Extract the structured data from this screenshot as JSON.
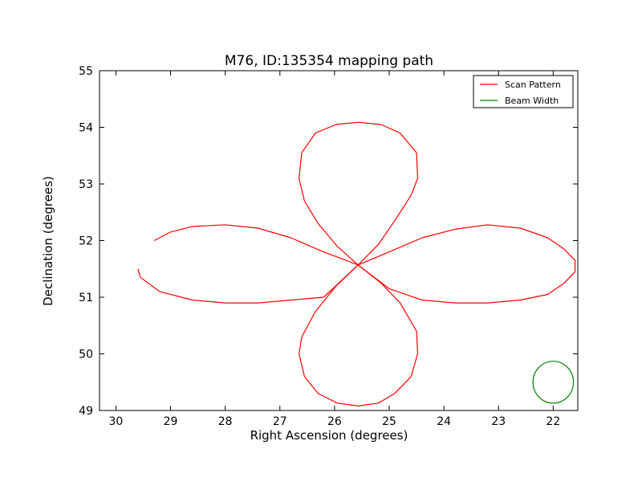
{
  "chart_data": {
    "type": "line",
    "title": "M76, ID:135354 mapping path",
    "xlabel": "Right Ascension (degrees)",
    "ylabel": "Declination (degrees)",
    "xlim": [
      30.3,
      21.55
    ],
    "ylim": [
      49,
      55
    ],
    "x_inverted": true,
    "xticks": [
      30,
      29,
      28,
      27,
      26,
      25,
      24,
      23,
      22
    ],
    "yticks": [
      49,
      50,
      51,
      52,
      53,
      54,
      55
    ],
    "grid": false,
    "legend_position": "top-right",
    "series": [
      {
        "name": "Scan Pattern",
        "color": "#ff0000",
        "x": [
          29.3,
          29.0,
          28.6,
          28.0,
          27.4,
          26.8,
          26.2,
          25.57,
          25.0,
          24.4,
          23.8,
          23.2,
          22.6,
          22.1,
          21.8,
          21.6,
          21.6,
          21.8,
          22.1,
          22.6,
          23.2,
          23.8,
          24.4,
          25.0,
          25.57,
          26.2,
          26.8,
          27.4,
          28.0,
          28.6,
          29.2,
          29.55,
          29.6
        ],
        "y": [
          52.0,
          52.15,
          52.25,
          52.28,
          52.22,
          52.05,
          51.8,
          51.57,
          51.8,
          52.05,
          52.2,
          52.28,
          52.22,
          52.05,
          51.85,
          51.65,
          51.45,
          51.25,
          51.05,
          50.95,
          50.9,
          50.9,
          50.95,
          51.15,
          51.57,
          51.0,
          50.95,
          50.9,
          50.9,
          50.95,
          51.1,
          51.35,
          51.5
        ]
      },
      {
        "name": "Scan Pattern",
        "color": "#ff0000",
        "x": [
          25.57,
          25.15,
          24.8,
          24.5,
          24.48,
          24.6,
          24.9,
          25.2,
          25.57,
          25.95,
          26.3,
          26.55,
          26.65,
          26.6,
          26.35,
          25.97,
          25.57,
          25.2,
          24.9,
          24.6,
          24.48,
          24.5,
          24.8,
          25.15,
          25.57,
          25.97,
          26.35,
          26.6,
          26.65,
          26.55,
          26.3,
          25.95,
          25.57
        ],
        "y": [
          51.57,
          51.25,
          50.9,
          50.4,
          50.0,
          49.6,
          49.3,
          49.13,
          49.08,
          49.13,
          49.3,
          49.6,
          50.0,
          50.3,
          50.75,
          51.2,
          51.57,
          51.93,
          52.35,
          52.8,
          53.1,
          53.55,
          53.9,
          54.05,
          54.09,
          54.05,
          53.9,
          53.55,
          53.1,
          52.7,
          52.3,
          51.9,
          51.57
        ]
      },
      {
        "name": "Beam Width",
        "color": "#008000",
        "shape": "circle",
        "center": [
          22.0,
          49.5
        ],
        "radius": 0.37
      }
    ],
    "legend": [
      {
        "label": "Scan Pattern",
        "color": "#ff0000"
      },
      {
        "label": "Beam Width",
        "color": "#008000"
      }
    ]
  }
}
